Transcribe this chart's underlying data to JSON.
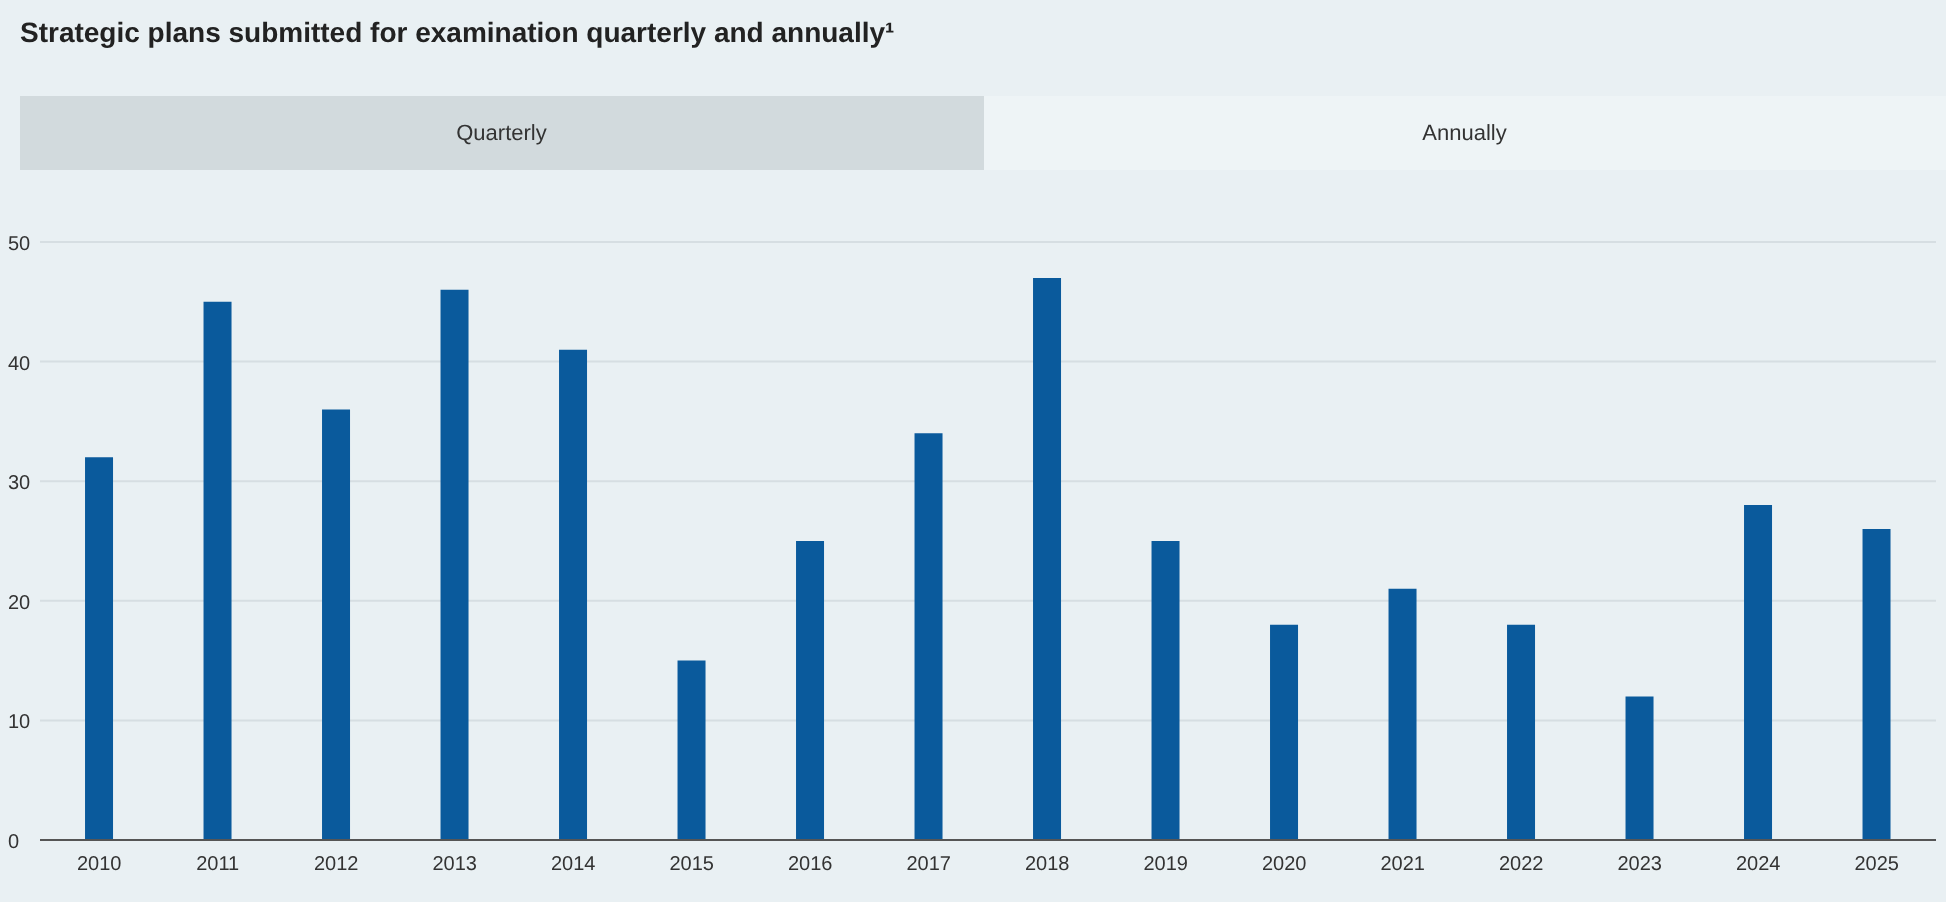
{
  "chart_data": {
    "type": "bar",
    "title": "Strategic plans submitted for examination quarterly and annually¹",
    "annotations": [
      "Quarterly",
      "Annually"
    ],
    "categories": [
      "2010",
      "2011",
      "2012",
      "2013",
      "2014",
      "2015",
      "2016",
      "2017",
      "2018",
      "2019",
      "2020",
      "2021",
      "2022",
      "2023",
      "2024",
      "2025"
    ],
    "values": [
      32,
      45,
      36,
      46,
      41,
      15,
      25,
      34,
      47,
      25,
      18,
      21,
      18,
      12,
      28,
      26
    ],
    "color": "#0a5a9c",
    "ylim": [
      0,
      50
    ],
    "yticks": [
      0,
      10,
      20,
      30,
      40,
      50
    ],
    "grid": "y"
  }
}
